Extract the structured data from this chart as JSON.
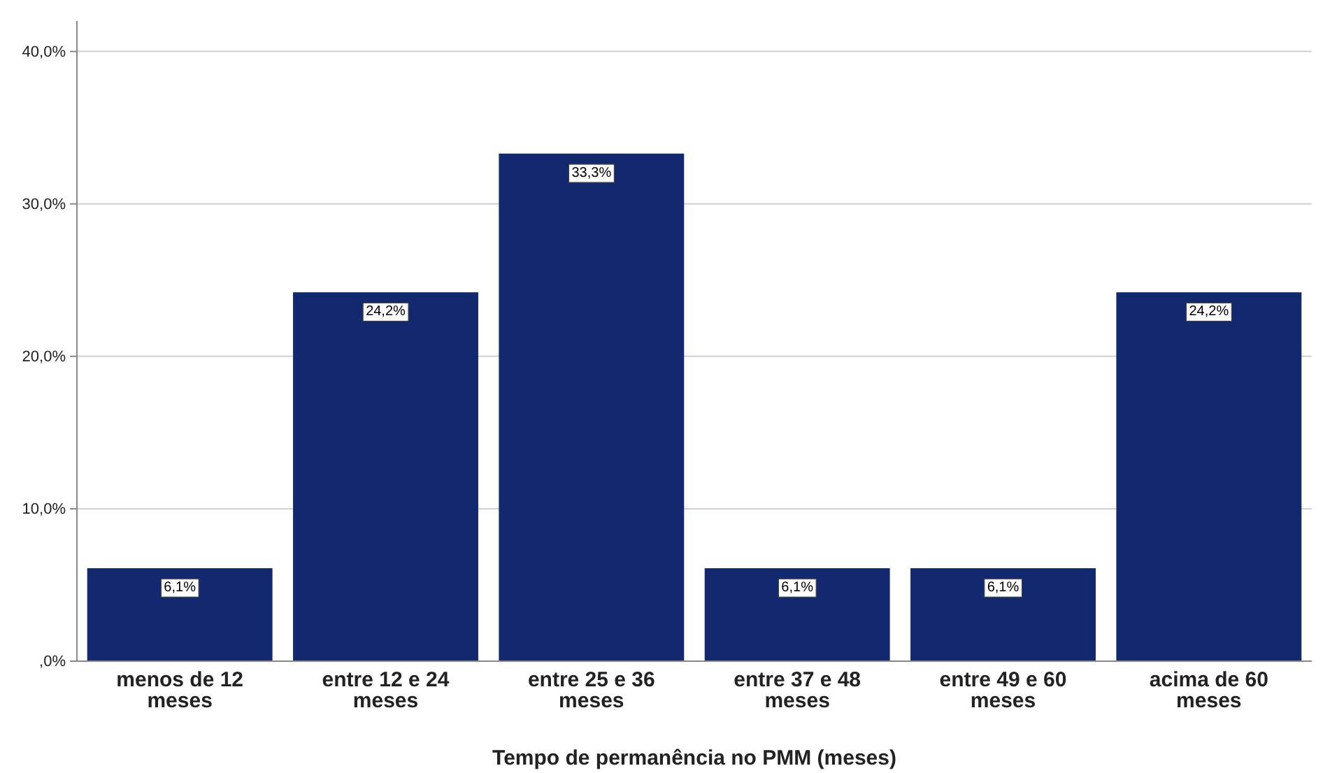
{
  "chart_data": {
    "type": "bar",
    "xlabel": "Tempo de permanência no PMM (meses)",
    "categories": [
      "menos de 12 meses",
      "entre 12 e 24 meses",
      "entre 25 e 36 meses",
      "entre 37 e 48 meses",
      "entre 49 e 60 meses",
      "acima de 60 meses"
    ],
    "values": [
      6.1,
      24.2,
      33.3,
      6.1,
      6.1,
      24.2
    ],
    "value_labels": [
      "6,1%",
      "24,2%",
      "33,3%",
      "6,1%",
      "6,1%",
      "24,2%"
    ],
    "color": "#13296f",
    "ylim": [
      0,
      42
    ],
    "yticks": [
      {
        "value": 0,
        "label": ",0%"
      },
      {
        "value": 10,
        "label": "10,0%"
      },
      {
        "value": 20,
        "label": "20,0%"
      },
      {
        "value": 30,
        "label": "30,0%"
      },
      {
        "value": 40,
        "label": "40,0%"
      }
    ],
    "grid": "y"
  }
}
